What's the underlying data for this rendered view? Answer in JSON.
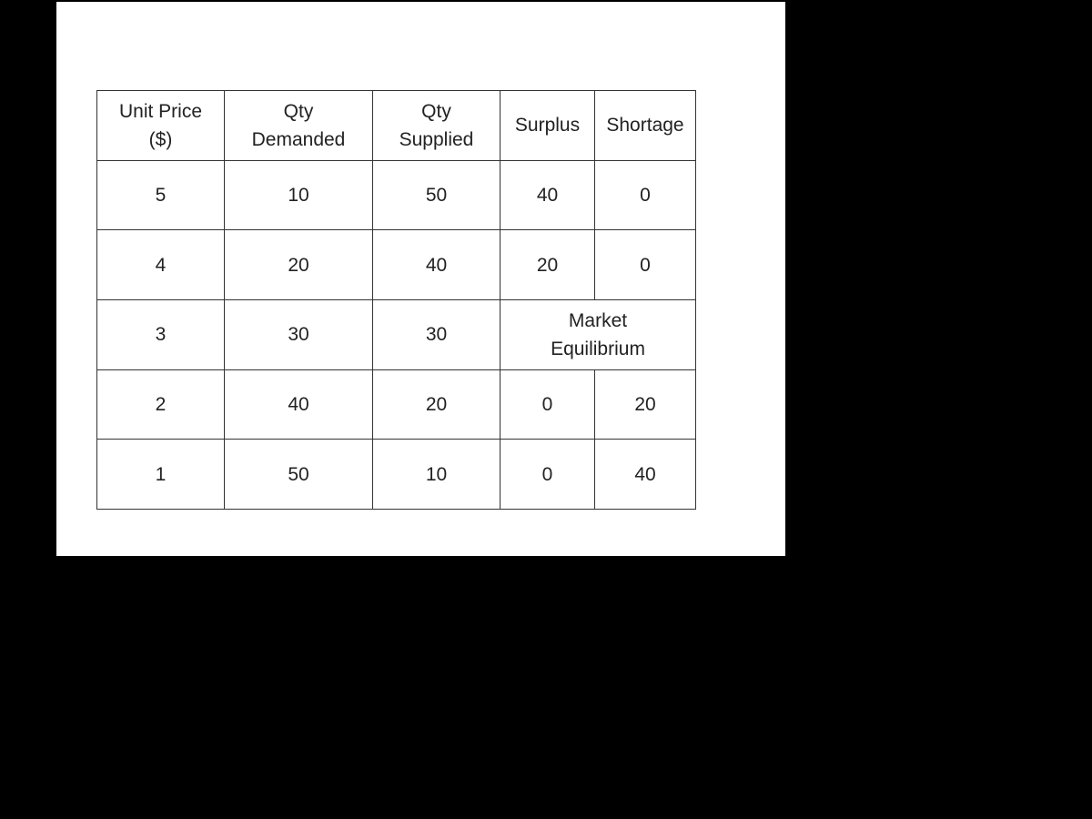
{
  "table": {
    "headers": [
      "Unit Price\n($)",
      "Qty\nDemanded",
      "Qty\nSupplied",
      "Surplus",
      "Shortage"
    ],
    "rows": [
      [
        "5",
        "10",
        "50",
        "40",
        "0"
      ],
      [
        "4",
        "20",
        "40",
        "20",
        "0"
      ],
      [
        "3",
        "30",
        "30",
        "Market\nEquilibrium"
      ],
      [
        "2",
        "40",
        "20",
        "0",
        "20"
      ],
      [
        "1",
        "50",
        "10",
        "0",
        "40"
      ]
    ]
  }
}
